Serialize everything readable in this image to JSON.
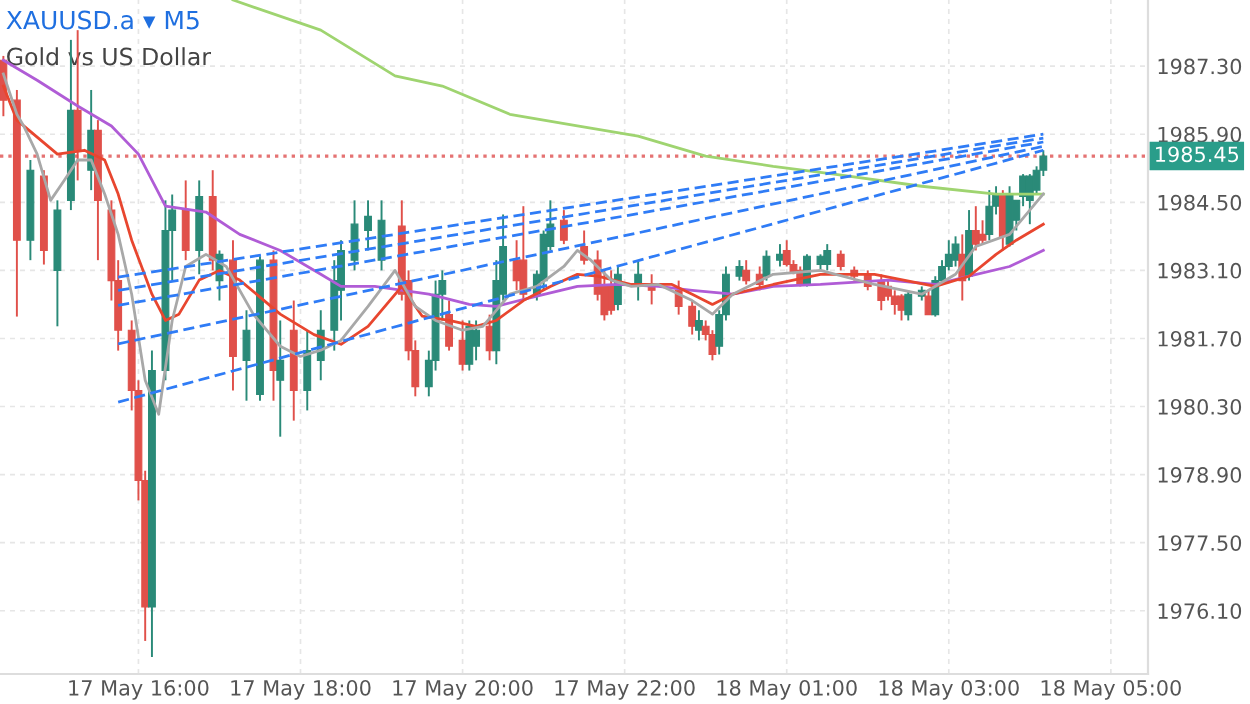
{
  "chart_data": {
    "type": "candlestick",
    "title": "XAUUSD.a ▾ M5",
    "subtitle": "Gold vs US Dollar",
    "categories": [
      null,
      null,
      null,
      null,
      null,
      null,
      null,
      null,
      null,
      null,
      null,
      null,
      null,
      null,
      null,
      null,
      null,
      null,
      null,
      null,
      "17 May 16:00",
      null,
      null,
      null,
      null,
      null,
      null,
      null,
      null,
      null,
      null,
      null,
      null,
      null,
      null,
      null,
      null,
      null,
      null,
      null,
      null,
      null,
      null,
      null,
      "17 May 18:00",
      null,
      null,
      null,
      null,
      null,
      null,
      null,
      null,
      null,
      null,
      null,
      null,
      null,
      null,
      null,
      null,
      null,
      null,
      null,
      null,
      null,
      null,
      null,
      "17 May 20:00",
      null,
      null,
      null,
      null,
      null,
      null,
      null,
      null,
      null,
      null,
      null,
      null,
      null,
      null,
      null,
      null,
      null,
      null,
      null,
      null,
      null,
      null,
      null,
      "17 May 22:00",
      null,
      null,
      null,
      null,
      null,
      null,
      null,
      null,
      null,
      null,
      null,
      null,
      null,
      null,
      null,
      null,
      null,
      null,
      null,
      null,
      null,
      null,
      null,
      "18 May 01:00",
      null,
      null,
      null,
      null,
      null,
      null,
      null,
      null,
      null,
      null,
      null,
      null,
      null,
      null,
      null,
      null,
      null,
      null,
      null,
      null,
      null,
      null,
      null,
      "18 May 03:00",
      null,
      null,
      null,
      null,
      null,
      null,
      null,
      null,
      null,
      null,
      null,
      null,
      null,
      null,
      null,
      null,
      null,
      null,
      null,
      null,
      null,
      null,
      null,
      "18 May 05:00",
      null,
      null,
      null,
      null,
      null
    ],
    "ohlc": [
      [
        1987.42,
        1987.51,
        1986.27,
        1986.6
      ],
      null,
      [
        1986.6,
        1986.81,
        1982.15,
        1983.72
      ],
      null,
      [
        1983.72,
        1985.37,
        1983.31,
        1985.16
      ],
      null,
      [
        1985.04,
        1985.16,
        1983.22,
        1983.51
      ],
      null,
      [
        1983.1,
        1984.54,
        1981.95,
        1984.34
      ],
      null,
      [
        1984.54,
        1987.84,
        1984.34,
        1986.39
      ],
      [
        1986.39,
        1988.04,
        1984.95,
        1985.57
      ],
      null,
      [
        1985.16,
        1986.81,
        1984.75,
        1985.98
      ],
      [
        1985.98,
        1986.19,
        1983.31,
        1984.54
      ],
      null,
      [
        1984.34,
        1984.54,
        1982.48,
        1982.89
      ],
      [
        1982.89,
        1983.31,
        1981.45,
        1981.87
      ],
      null,
      [
        1981.87,
        1982.07,
        1980.22,
        1980.63
      ],
      [
        1980.63,
        1980.84,
        1978.37,
        1978.78
      ],
      [
        1978.78,
        1978.98,
        1975.48,
        1976.18
      ],
      [
        1976.18,
        1981.45,
        1975.15,
        1981.04
      ],
      null,
      [
        1981.04,
        1984.54,
        1980.84,
        1983.92
      ],
      [
        1983.92,
        1984.66,
        1982.89,
        1984.34
      ],
      null,
      [
        1984.34,
        1984.95,
        1983.31,
        1983.51
      ],
      null,
      [
        1983.51,
        1984.95,
        1983.02,
        1984.62
      ],
      null,
      [
        1984.62,
        1985.16,
        1983.1,
        1983.31
      ],
      [
        1982.89,
        1983.51,
        1982.48,
        1983.43
      ],
      null,
      [
        1983.31,
        1983.72,
        1980.63,
        1981.33
      ],
      null,
      [
        1981.25,
        1982.28,
        1980.42,
        1981.87
      ],
      null,
      [
        1980.55,
        1983.39,
        1980.42,
        1983.31
      ],
      null,
      [
        1983.31,
        1983.51,
        1980.42,
        1981.04
      ],
      [
        1980.84,
        1982.07,
        1979.68,
        1981.25
      ],
      null,
      [
        1981.87,
        1982.48,
        1980.01,
        1980.63
      ],
      null,
      [
        1980.63,
        1981.87,
        1980.22,
        1981.45
      ],
      null,
      [
        1981.25,
        1982.28,
        1980.84,
        1981.87
      ],
      null,
      [
        1981.87,
        1983.31,
        1981.45,
        1982.89
      ],
      [
        1982.69,
        1983.72,
        1982.07,
        1983.51
      ],
      null,
      [
        1983.31,
        1984.54,
        1983.1,
        1984.05
      ],
      null,
      [
        1983.92,
        1984.54,
        1983.51,
        1984.21
      ],
      null,
      [
        1983.31,
        1984.54,
        1983.1,
        1984.13
      ],
      null,
      null,
      [
        1984.01,
        1984.54,
        1982.48,
        1982.61
      ],
      [
        1982.89,
        1983.1,
        1981.25,
        1981.45
      ],
      [
        1981.45,
        1981.66,
        1980.51,
        1980.71
      ],
      null,
      [
        1980.71,
        1981.45,
        1980.51,
        1981.25
      ],
      [
        1981.25,
        1982.89,
        1981.04,
        1982.61
      ],
      [
        1982.61,
        1983.1,
        1982.07,
        1982.89
      ],
      [
        1982.19,
        1982.48,
        1981.45,
        1981.54
      ],
      null,
      [
        1981.66,
        1982.07,
        1981.04,
        1981.17
      ],
      [
        1981.17,
        1982.07,
        1981.04,
        1981.95
      ],
      [
        1981.54,
        1982.07,
        1981.25,
        1981.87
      ],
      null,
      [
        1981.95,
        1982.19,
        1981.25,
        1981.45
      ],
      [
        1981.45,
        1983.31,
        1981.17,
        1982.89
      ],
      [
        1982.61,
        1984.25,
        1982.48,
        1983.59
      ],
      null,
      [
        1983.31,
        1983.72,
        1982.69,
        1982.89
      ],
      [
        1983.31,
        1984.42,
        1982.48,
        1982.61
      ],
      null,
      [
        1982.61,
        1983.1,
        1982.48,
        1983.02
      ],
      [
        1982.89,
        1983.92,
        1982.69,
        1983.84
      ],
      [
        1983.59,
        1984.54,
        1983.51,
        1984.05
      ],
      null,
      [
        1984.13,
        1984.34,
        1983.64,
        1983.72
      ],
      null,
      null,
      [
        1983.59,
        1983.92,
        1983.22,
        1983.31
      ],
      null,
      [
        1983.31,
        1983.51,
        1982.48,
        1982.61
      ],
      [
        1982.77,
        1983.1,
        1982.07,
        1982.19
      ],
      [
        1982.77,
        1983.1,
        1982.19,
        1982.28
      ],
      [
        1982.4,
        1983.18,
        1982.28,
        1983.02
      ],
      null,
      null,
      [
        1982.77,
        1983.31,
        1982.48,
        1983.02
      ],
      null,
      [
        1982.77,
        1983.02,
        1982.4,
        1982.69
      ],
      null,
      null,
      null,
      [
        1982.69,
        1982.89,
        1982.19,
        1982.36
      ],
      null,
      [
        1982.36,
        1982.48,
        1981.78,
        1981.95
      ],
      [
        1981.87,
        1982.28,
        1981.66,
        1982.07
      ],
      [
        1981.95,
        1982.07,
        1981.66,
        1981.78
      ],
      [
        1981.78,
        1981.87,
        1981.25,
        1981.37
      ],
      [
        1981.54,
        1982.28,
        1981.37,
        1982.19
      ],
      [
        1982.19,
        1983.18,
        1982.07,
        1983.02
      ],
      null,
      [
        1982.98,
        1983.31,
        1982.89,
        1983.18
      ],
      [
        1983.1,
        1983.31,
        1982.81,
        1982.89
      ],
      null,
      [
        1983.02,
        1983.18,
        1982.69,
        1982.81
      ],
      [
        1982.98,
        1983.51,
        1982.89,
        1983.39
      ],
      null,
      [
        1983.31,
        1983.64,
        1983.18,
        1983.43
      ],
      [
        1983.51,
        1983.72,
        1983.18,
        1983.22
      ],
      [
        1983.22,
        1983.31,
        1983.02,
        1983.06
      ],
      [
        1983.1,
        1983.18,
        1982.77,
        1982.81
      ],
      [
        1982.81,
        1983.43,
        1982.77,
        1983.39
      ],
      null,
      [
        1983.22,
        1983.43,
        1983.1,
        1983.39
      ],
      [
        1983.22,
        1983.64,
        1983.1,
        1983.51
      ],
      null,
      [
        1983.43,
        1983.51,
        1983.1,
        1983.18
      ],
      null,
      [
        1983.1,
        1983.18,
        1982.89,
        1982.98
      ],
      null,
      [
        1983.02,
        1983.1,
        1982.69,
        1982.77
      ],
      null,
      [
        1982.89,
        1983.02,
        1982.28,
        1982.48
      ],
      [
        1982.77,
        1982.89,
        1982.48,
        1982.57
      ],
      [
        1982.57,
        1982.69,
        1982.19,
        1982.4
      ],
      [
        1982.57,
        1982.61,
        1982.07,
        1982.28
      ],
      [
        1982.19,
        1982.69,
        1982.07,
        1982.61
      ],
      null,
      [
        1982.57,
        1982.77,
        1982.48,
        1982.69
      ],
      [
        1982.57,
        1982.69,
        1982.19,
        1982.19
      ],
      [
        1982.19,
        1982.98,
        1982.15,
        1982.89
      ],
      [
        1982.89,
        1983.31,
        1982.81,
        1983.18
      ],
      [
        1983.18,
        1983.72,
        1983.1,
        1983.43
      ],
      [
        1983.31,
        1983.8,
        1983.18,
        1983.64
      ],
      [
        1983.43,
        1983.84,
        1982.48,
        1982.89
      ],
      [
        1982.98,
        1984.34,
        1982.89,
        1983.92
      ],
      [
        1983.92,
        1984.42,
        1983.51,
        1983.64
      ],
      [
        1983.84,
        1984.13,
        1983.64,
        1983.72
      ],
      [
        1983.84,
        1984.75,
        1983.72,
        1984.42
      ],
      [
        1984.42,
        1984.83,
        1984.25,
        1984.66
      ],
      [
        1984.66,
        1984.75,
        1983.51,
        1983.8
      ],
      [
        1983.64,
        1984.83,
        1983.59,
        1984.66
      ],
      [
        1984.13,
        1984.54,
        1983.92,
        1984.54
      ],
      [
        1984.62,
        1985.08,
        1984.42,
        1985.04
      ],
      [
        1984.54,
        1985.08,
        1984.05,
        1985.04
      ],
      [
        1984.75,
        1985.24,
        1984.66,
        1985.16
      ],
      [
        1985.16,
        1985.57,
        1985.04,
        1985.45
      ],
      null,
      null,
      null,
      null,
      null,
      null,
      null,
      null,
      null,
      null,
      null,
      null,
      null,
      null,
      null
    ],
    "series": [
      {
        "type": "line",
        "color": "#9fd470",
        "values": [
          null,
          null,
          null,
          null,
          null,
          null,
          null,
          null,
          null,
          null,
          null,
          null,
          null,
          null,
          null,
          null,
          null,
          null,
          null,
          null,
          null,
          null,
          null,
          null,
          null,
          null,
          null,
          null,
          null,
          null,
          null,
          null,
          null,
          null,
          1988.66,
          null,
          null,
          null,
          null,
          null,
          null,
          null,
          null,
          null,
          null,
          null,
          null,
          1988.04,
          null,
          null,
          null,
          null,
          null,
          null,
          null,
          null,
          null,
          null,
          1987.1,
          null,
          null,
          null,
          null,
          null,
          null,
          1986.89,
          null,
          null,
          null,
          null,
          null,
          null,
          null,
          null,
          null,
          1986.31,
          null,
          null,
          null,
          null,
          null,
          null,
          null,
          null,
          null,
          1986.07,
          null,
          null,
          null,
          null,
          null,
          null,
          null,
          null,
          1985.86,
          null,
          null,
          null,
          null,
          null,
          null,
          null,
          null,
          null,
          1985.45,
          null,
          null,
          null,
          null,
          null,
          null,
          null,
          null,
          null,
          1985.24,
          null,
          null,
          null,
          null,
          null,
          null,
          null,
          null,
          1985.08,
          null,
          null,
          null,
          null,
          null,
          null,
          null,
          null,
          null,
          null,
          null,
          null,
          1984.83,
          null,
          null,
          null,
          null,
          null,
          null,
          null,
          null,
          null,
          null,
          1984.67,
          null,
          null,
          null,
          null,
          null,
          null,
          1984.67,
          null,
          null,
          null,
          null,
          null,
          null,
          null,
          null,
          null,
          null,
          null,
          null,
          null,
          null,
          null
        ]
      },
      {
        "type": "line",
        "color": "#b05cd6",
        "values": [
          1987.42,
          null,
          null,
          null,
          null,
          1987.01,
          null,
          null,
          null,
          null,
          null,
          1986.48,
          null,
          null,
          null,
          null,
          1986.07,
          null,
          null,
          null,
          1985.49,
          null,
          null,
          null,
          1984.42,
          null,
          null,
          null,
          null,
          null,
          1984.3,
          null,
          null,
          null,
          null,
          1983.84,
          null,
          null,
          null,
          null,
          null,
          1983.51,
          null,
          null,
          null,
          null,
          null,
          1983.02,
          null,
          null,
          1982.77,
          null,
          null,
          null,
          null,
          1982.77,
          null,
          null,
          null,
          null,
          null,
          null,
          null,
          1982.61,
          null,
          null,
          null,
          null,
          null,
          1982.4,
          null,
          null,
          null,
          1982.36,
          null,
          null,
          null,
          null,
          null,
          1982.57,
          null,
          null,
          null,
          null,
          null,
          1982.77,
          null,
          null,
          null,
          null,
          null,
          1982.81,
          null,
          null,
          null,
          null,
          null,
          1982.77,
          null,
          null,
          null,
          null,
          1982.69,
          null,
          null,
          null,
          null,
          null,
          1982.61,
          null,
          null,
          null,
          null,
          null,
          1982.77,
          null,
          null,
          null,
          null,
          null,
          null,
          1982.81,
          null,
          null,
          null,
          null,
          null,
          null,
          null,
          null,
          null,
          1982.9,
          null,
          null,
          null,
          null,
          null,
          null,
          1982.81,
          null,
          null,
          null,
          null,
          1982.98,
          null,
          null,
          null,
          null,
          null,
          1983.18,
          null,
          null,
          null,
          null,
          1983.51,
          null,
          null,
          null,
          null,
          null,
          null,
          null,
          null,
          null,
          null,
          null,
          null,
          null,
          null,
          null
        ]
      },
      {
        "type": "line",
        "color": "#e8462f",
        "values": [
          1986.89,
          null,
          1986.19,
          null,
          null,
          null,
          null,
          null,
          1985.49,
          null,
          null,
          null,
          1985.57,
          null,
          null,
          1985.37,
          null,
          1984.67,
          null,
          1983.72,
          null,
          null,
          1982.61,
          null,
          1982.07,
          null,
          1982.2,
          null,
          null,
          1982.9,
          null,
          null,
          1983.1,
          null,
          null,
          1982.9,
          null,
          null,
          null,
          null,
          null,
          1982.2,
          null,
          null,
          null,
          null,
          1981.78,
          null,
          null,
          null,
          1981.58,
          null,
          null,
          null,
          1981.95,
          null,
          null,
          null,
          null,
          1982.77,
          null,
          null,
          1982.16,
          null,
          null,
          null,
          1982.07,
          null,
          null,
          null,
          1981.95,
          null,
          null,
          1982.07,
          null,
          null,
          null,
          1982.48,
          null,
          null,
          null,
          1982.77,
          null,
          null,
          null,
          1983.02,
          null,
          null,
          1982.98,
          null,
          null,
          null,
          null,
          1982.81,
          null,
          null,
          null,
          null,
          null,
          1982.81,
          null,
          null,
          1982.61,
          null,
          null,
          1982.4,
          null,
          null,
          1982.61,
          null,
          null,
          null,
          null,
          null,
          1982.81,
          null,
          null,
          null,
          null,
          null,
          null,
          1983.02,
          null,
          null,
          null,
          null,
          null,
          null,
          null,
          1983.02,
          null,
          null,
          null,
          null,
          null,
          null,
          null,
          null,
          1982.77,
          null,
          null,
          null,
          null,
          1982.98,
          null,
          null,
          null,
          1983.43,
          null,
          null,
          1983.72,
          null,
          null,
          null,
          1984.05,
          null,
          null,
          null,
          null,
          null,
          null,
          null,
          null,
          null,
          null,
          null,
          null,
          null,
          null,
          null
        ]
      },
      {
        "type": "line",
        "color": "#a8a8a8",
        "values": [
          1987.14,
          null,
          1986.31,
          1986.07,
          null,
          1985.49,
          null,
          1984.54,
          null,
          1984.95,
          null,
          1985.37,
          null,
          1985.37,
          null,
          1984.67,
          null,
          1983.84,
          null,
          1982.61,
          null,
          1980.84,
          null,
          1980.14,
          null,
          1982.07,
          null,
          1983.18,
          null,
          null,
          1983.43,
          null,
          null,
          1983.18,
          null,
          null,
          null,
          1982.2,
          null,
          null,
          null,
          1981.54,
          null,
          null,
          1981.33,
          null,
          null,
          1981.46,
          null,
          null,
          1981.66,
          null,
          null,
          null,
          1982.36,
          null,
          null,
          null,
          1983.1,
          null,
          null,
          1982.36,
          null,
          null,
          1982.07,
          null,
          null,
          null,
          1981.87,
          null,
          null,
          1981.95,
          null,
          null,
          null,
          1982.61,
          null,
          null,
          null,
          1982.77,
          null,
          null,
          null,
          1983.18,
          null,
          1983.51,
          null,
          1983.31,
          null,
          null,
          1982.9,
          null,
          null,
          1982.77,
          null,
          null,
          null,
          1982.81,
          null,
          null,
          null,
          null,
          1982.48,
          null,
          null,
          1982.2,
          null,
          null,
          1982.61,
          null,
          null,
          null,
          null,
          null,
          1983.02,
          null,
          null,
          null,
          null,
          null,
          null,
          1983.1,
          null,
          null,
          null,
          null,
          null,
          null,
          null,
          1982.81,
          null,
          null,
          null,
          null,
          null,
          null,
          1982.61,
          null,
          null,
          null,
          null,
          1983.02,
          null,
          null,
          1983.59,
          null,
          null,
          null,
          null,
          1983.84,
          null,
          null,
          null,
          null,
          1984.67,
          null,
          null,
          null,
          null,
          null,
          null,
          null,
          null,
          null,
          null,
          null,
          null,
          null,
          null,
          null
        ]
      },
      {
        "type": "line",
        "color": "#2f7cf6",
        "line_style": "dashed",
        "values": [
          null,
          null,
          null,
          null,
          null,
          null,
          null,
          null,
          null,
          null,
          null,
          null,
          null,
          null,
          null,
          null,
          null,
          1982.96,
          null,
          null,
          null,
          null,
          null,
          null,
          null,
          null,
          null,
          null,
          null,
          null,
          null,
          null,
          null,
          null,
          null,
          null,
          null,
          null,
          null,
          null,
          null,
          null,
          null,
          null,
          null,
          null,
          null,
          null,
          null,
          null,
          null,
          null,
          null,
          null,
          null,
          null,
          null,
          null,
          null,
          null,
          null,
          null,
          null,
          null,
          null,
          null,
          null,
          null,
          null,
          null,
          null,
          null,
          null,
          null,
          null,
          null,
          null,
          null,
          null,
          null,
          null,
          null,
          null,
          null,
          null,
          null,
          null,
          null,
          null,
          null,
          null,
          null,
          null,
          null,
          null,
          null,
          null,
          null,
          null,
          null,
          null,
          null,
          null,
          null,
          null,
          null,
          null,
          null,
          null,
          null,
          null,
          null,
          null,
          null,
          null,
          null,
          null,
          null,
          null,
          null,
          null,
          null,
          null,
          null,
          null,
          null,
          null,
          null,
          null,
          null,
          null,
          null,
          null,
          null,
          null,
          null,
          null,
          null,
          null,
          null,
          null,
          null,
          null,
          null,
          null,
          null,
          null,
          null,
          null,
          null,
          null,
          null,
          null,
          null,
          1985.9,
          null,
          null,
          null,
          null,
          null,
          null,
          null,
          null,
          null,
          null,
          null,
          null,
          null,
          null,
          null
        ]
      },
      {
        "type": "line",
        "color": "#2f7cf6",
        "line_style": "dashed",
        "values": [
          null,
          null,
          null,
          null,
          null,
          null,
          null,
          null,
          null,
          null,
          null,
          null,
          null,
          null,
          null,
          null,
          null,
          1982.69,
          null,
          null,
          null,
          null,
          null,
          null,
          null,
          null,
          null,
          null,
          null,
          null,
          null,
          null,
          null,
          null,
          null,
          null,
          null,
          null,
          null,
          null,
          null,
          null,
          null,
          null,
          null,
          null,
          null,
          null,
          null,
          null,
          null,
          null,
          null,
          null,
          null,
          null,
          null,
          null,
          null,
          null,
          null,
          null,
          null,
          null,
          null,
          null,
          null,
          null,
          null,
          null,
          null,
          null,
          null,
          null,
          null,
          null,
          null,
          null,
          null,
          null,
          null,
          null,
          null,
          null,
          null,
          null,
          null,
          null,
          null,
          null,
          null,
          null,
          null,
          null,
          null,
          null,
          null,
          null,
          null,
          null,
          null,
          null,
          null,
          null,
          null,
          null,
          null,
          null,
          null,
          null,
          null,
          null,
          null,
          null,
          null,
          null,
          null,
          null,
          null,
          null,
          null,
          null,
          null,
          null,
          null,
          null,
          null,
          null,
          null,
          null,
          null,
          null,
          null,
          null,
          null,
          null,
          null,
          null,
          null,
          null,
          null,
          null,
          null,
          null,
          null,
          null,
          null,
          null,
          null,
          null,
          null,
          null,
          null,
          null,
          1985.82,
          null,
          null,
          null,
          null,
          null,
          null,
          null,
          null,
          null,
          null,
          null,
          null,
          null,
          null,
          null
        ]
      },
      {
        "type": "line",
        "color": "#2f7cf6",
        "line_style": "dashed",
        "values": [
          null,
          null,
          null,
          null,
          null,
          null,
          null,
          null,
          null,
          null,
          null,
          null,
          null,
          null,
          null,
          null,
          null,
          1982.38,
          null,
          null,
          null,
          null,
          null,
          null,
          null,
          null,
          null,
          null,
          null,
          null,
          null,
          null,
          null,
          null,
          null,
          null,
          null,
          null,
          null,
          null,
          null,
          null,
          null,
          null,
          null,
          null,
          null,
          null,
          null,
          null,
          null,
          null,
          null,
          null,
          null,
          null,
          null,
          null,
          null,
          null,
          null,
          null,
          null,
          null,
          null,
          null,
          null,
          null,
          null,
          null,
          null,
          null,
          null,
          null,
          null,
          null,
          null,
          null,
          null,
          null,
          null,
          null,
          null,
          null,
          null,
          null,
          null,
          null,
          null,
          null,
          null,
          null,
          null,
          null,
          null,
          null,
          null,
          null,
          null,
          null,
          null,
          null,
          null,
          null,
          null,
          null,
          null,
          null,
          null,
          null,
          null,
          null,
          null,
          null,
          null,
          null,
          null,
          null,
          null,
          null,
          null,
          null,
          null,
          null,
          null,
          null,
          null,
          null,
          null,
          null,
          null,
          null,
          null,
          null,
          null,
          null,
          null,
          null,
          null,
          null,
          null,
          null,
          null,
          null,
          null,
          null,
          null,
          null,
          null,
          null,
          null,
          null,
          null,
          null,
          1985.74,
          null,
          null,
          null,
          null,
          null,
          null,
          null,
          null,
          null,
          null,
          null,
          null,
          null,
          null,
          null
        ]
      },
      {
        "type": "line",
        "color": "#2f7cf6",
        "line_style": "dashed",
        "values": [
          null,
          null,
          null,
          null,
          null,
          null,
          null,
          null,
          null,
          null,
          null,
          null,
          null,
          null,
          null,
          null,
          null,
          1981.59,
          null,
          null,
          null,
          null,
          null,
          null,
          null,
          null,
          null,
          null,
          null,
          null,
          null,
          null,
          null,
          null,
          null,
          null,
          null,
          null,
          null,
          null,
          null,
          null,
          null,
          null,
          null,
          null,
          null,
          null,
          null,
          null,
          null,
          null,
          null,
          null,
          null,
          null,
          null,
          null,
          null,
          null,
          null,
          null,
          null,
          null,
          null,
          null,
          null,
          null,
          null,
          null,
          null,
          null,
          null,
          null,
          null,
          null,
          null,
          null,
          null,
          null,
          null,
          null,
          null,
          null,
          null,
          null,
          null,
          null,
          null,
          null,
          null,
          null,
          null,
          null,
          null,
          null,
          null,
          null,
          null,
          null,
          null,
          null,
          null,
          null,
          null,
          null,
          null,
          null,
          null,
          null,
          null,
          null,
          null,
          null,
          null,
          null,
          null,
          null,
          null,
          null,
          null,
          null,
          null,
          null,
          null,
          null,
          null,
          null,
          null,
          null,
          null,
          null,
          null,
          null,
          null,
          null,
          null,
          null,
          null,
          null,
          null,
          null,
          null,
          null,
          null,
          null,
          null,
          null,
          null,
          null,
          null,
          null,
          null,
          null,
          1985.65,
          null,
          null,
          null,
          null,
          null,
          null,
          null,
          null,
          null,
          null,
          null,
          null,
          null,
          null,
          null
        ]
      },
      {
        "type": "line",
        "color": "#2f7cf6",
        "line_style": "dashed",
        "values": [
          null,
          null,
          null,
          null,
          null,
          null,
          null,
          null,
          null,
          null,
          null,
          null,
          null,
          null,
          null,
          null,
          null,
          1980.39,
          null,
          null,
          null,
          null,
          null,
          null,
          null,
          null,
          null,
          null,
          null,
          null,
          null,
          null,
          null,
          null,
          null,
          null,
          null,
          null,
          null,
          null,
          null,
          null,
          null,
          null,
          null,
          null,
          null,
          null,
          null,
          null,
          null,
          null,
          null,
          null,
          null,
          null,
          null,
          null,
          null,
          null,
          null,
          null,
          null,
          null,
          null,
          null,
          null,
          null,
          null,
          null,
          null,
          null,
          null,
          null,
          null,
          null,
          null,
          null,
          null,
          null,
          null,
          null,
          null,
          null,
          null,
          null,
          null,
          null,
          null,
          null,
          null,
          null,
          null,
          null,
          null,
          null,
          null,
          null,
          null,
          null,
          null,
          null,
          null,
          null,
          null,
          null,
          null,
          null,
          null,
          null,
          null,
          null,
          null,
          null,
          null,
          null,
          null,
          null,
          null,
          null,
          null,
          null,
          null,
          null,
          null,
          null,
          null,
          null,
          null,
          null,
          null,
          null,
          null,
          null,
          null,
          null,
          null,
          null,
          null,
          null,
          null,
          null,
          null,
          null,
          null,
          null,
          null,
          null,
          null,
          null,
          null,
          null,
          null,
          null,
          1985.57,
          null,
          null,
          null,
          null,
          null,
          null,
          null,
          null,
          null,
          null,
          null,
          null,
          null,
          null,
          null
        ]
      }
    ],
    "ylim": [
      1974.8,
      1988.66
    ],
    "yticks": [
      {
        "value": 1976.1,
        "label": "1976.10"
      },
      {
        "value": 1977.5,
        "label": "1977.50"
      },
      {
        "value": 1978.9,
        "label": "1978.90"
      },
      {
        "value": 1980.3,
        "label": "1980.30"
      },
      {
        "value": 1981.7,
        "label": "1981.70"
      },
      {
        "value": 1983.1,
        "label": "1983.10"
      },
      {
        "value": 1984.5,
        "label": "1984.50"
      },
      {
        "value": 1985.9,
        "label": "1985.90"
      },
      {
        "value": 1987.3,
        "label": "1987.30"
      }
    ],
    "ref_lines": [
      {
        "axis": "y",
        "value": 1985.45,
        "label": "1985.45",
        "color": "#e57373",
        "line_style": "dotted"
      }
    ],
    "grid": true
  }
}
